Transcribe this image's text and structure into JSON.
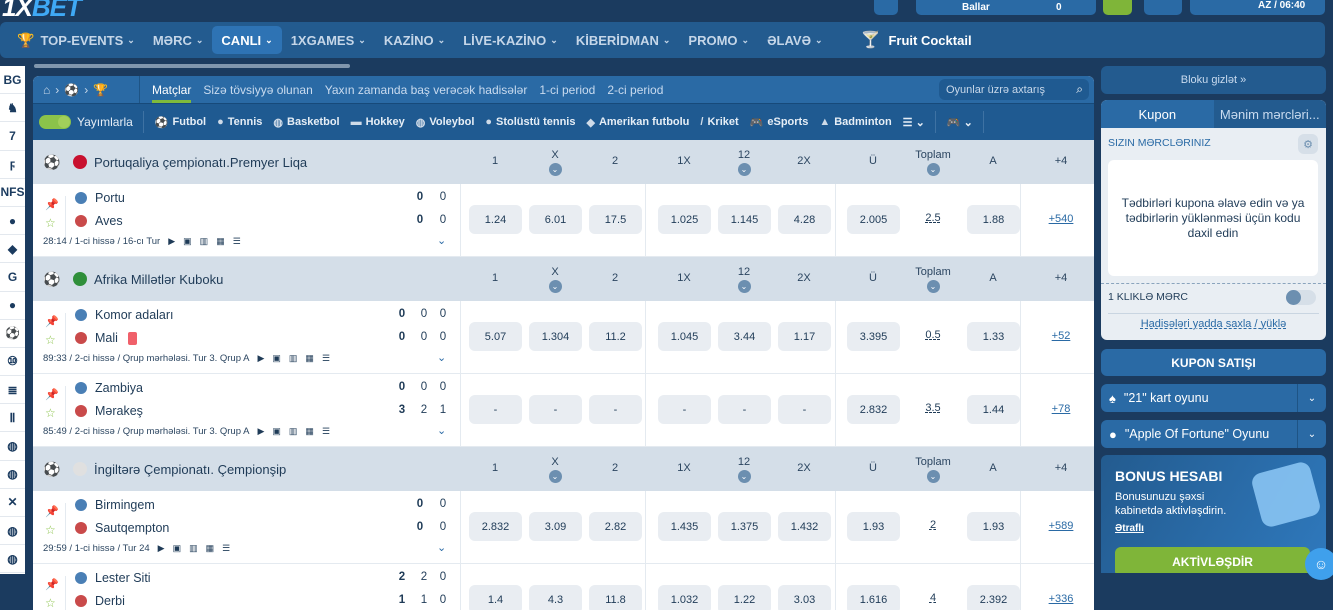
{
  "header": {
    "logo": "1XBET",
    "balance_label": "Ballar",
    "balance_value": "0",
    "lang_time": "AZ / 06:40"
  },
  "nav": [
    {
      "label": "TOP-EVENTS",
      "icon": "trophy-icon"
    },
    {
      "label": "MƏRC"
    },
    {
      "label": "CANLI",
      "active": true
    },
    {
      "label": "1XGAMES"
    },
    {
      "label": "KAZİNO"
    },
    {
      "label": "LİVE-KAZİNO"
    },
    {
      "label": "KİBERİDMAN"
    },
    {
      "label": "PROMO"
    },
    {
      "label": "ƏLAVƏ"
    }
  ],
  "nav_featured": {
    "label": "Fruit Cocktail",
    "icon": "cocktail-icon"
  },
  "left_strip": [
    "BG",
    "♞",
    "7",
    "ϝ",
    "NFS",
    "●",
    "◆",
    "G",
    "●",
    "⚽",
    "⑩",
    "≣",
    "Ⅱ",
    "◍",
    "◍",
    "✕",
    "◍",
    "◍"
  ],
  "crumb_tabs": [
    {
      "label": "Matçlar",
      "active": true
    },
    {
      "label": "Sizə tövsiyyə olunan"
    },
    {
      "label": "Yaxın zamanda baş verəcək hadisələr"
    },
    {
      "label": "1-ci period"
    },
    {
      "label": "2-ci period"
    }
  ],
  "search": {
    "placeholder": "Oyunlar üzrə axtarış"
  },
  "streams_label": "Yayımlarla",
  "sports": [
    {
      "label": "Futbol",
      "icon": "⚽"
    },
    {
      "label": "Tennis",
      "icon": "●"
    },
    {
      "label": "Basketbol",
      "icon": "◍"
    },
    {
      "label": "Hokkey",
      "icon": "▬"
    },
    {
      "label": "Voleybol",
      "icon": "◍"
    },
    {
      "label": "Stolüstü tennis",
      "icon": "●"
    },
    {
      "label": "Amerikan futbolu",
      "icon": "◆"
    },
    {
      "label": "Kriket",
      "icon": "/"
    },
    {
      "label": "eSports",
      "icon": "🎮"
    },
    {
      "label": "Badminton",
      "icon": "▲"
    }
  ],
  "columns": [
    {
      "label": "1"
    },
    {
      "label": "X",
      "dropdown": true
    },
    {
      "label": "2"
    },
    {
      "label": "1X"
    },
    {
      "label": "12",
      "dropdown": true
    },
    {
      "label": "2X"
    },
    {
      "label": "Ü"
    },
    {
      "label": "Toplam",
      "dropdown": true
    },
    {
      "label": "A"
    },
    {
      "label": "+4"
    }
  ],
  "leagues": [
    {
      "name": "Portuqaliya çempionatı.Premyer Liqa",
      "flag": "#c8102e",
      "matches": [
        {
          "teams": [
            "Portu",
            "Aves"
          ],
          "scores": [
            [
              "0",
              "0"
            ],
            [
              "0",
              "0"
            ]
          ],
          "info": "28:14 / 1-ci hissə / 16-cı Tur",
          "odds": [
            "1.24",
            "6.01",
            "17.5",
            "1.025",
            "1.145",
            "4.28",
            "2.005",
            "2.5",
            "1.88",
            "+540"
          ]
        }
      ]
    },
    {
      "name": "Afrika Millətlər Kuboku",
      "flag": "#2f8f3a",
      "matches": [
        {
          "teams": [
            "Komor adaları",
            "Mali"
          ],
          "red_card": 1,
          "scores": [
            [
              "0",
              "0",
              "0"
            ],
            [
              "0",
              "0",
              "0"
            ]
          ],
          "info": "89:33 / 2-ci hissə / Qrup mərhələsi. Tur 3. Qrup A",
          "odds": [
            "5.07",
            "1.304",
            "11.2",
            "1.045",
            "3.44",
            "1.17",
            "3.395",
            "0.5",
            "1.33",
            "+52"
          ]
        },
        {
          "teams": [
            "Zambiya",
            "Mərakeş"
          ],
          "scores": [
            [
              "0",
              "0",
              "0"
            ],
            [
              "3",
              "2",
              "1"
            ]
          ],
          "info": "85:49 / 2-ci hissə / Qrup mərhələsi. Tur 3. Qrup A",
          "odds": [
            "-",
            "-",
            "-",
            "-",
            "-",
            "-",
            "2.832",
            "3.5",
            "1.44",
            "+78"
          ]
        }
      ]
    },
    {
      "name": "İngiltərə Çempionatı. Çempionşip",
      "flag": "#e0e0e0",
      "matches": [
        {
          "teams": [
            "Birmingem",
            "Sautqempton"
          ],
          "scores": [
            [
              "0",
              "0"
            ],
            [
              "0",
              "0"
            ]
          ],
          "info": "29:59 / 1-ci hissə / Tur 24",
          "odds": [
            "2.832",
            "3.09",
            "2.82",
            "1.435",
            "1.375",
            "1.432",
            "1.93",
            "2",
            "1.93",
            "+589"
          ]
        },
        {
          "teams": [
            "Lester Siti",
            "Derbi"
          ],
          "scores": [
            [
              "2",
              "2",
              "0"
            ],
            [
              "1",
              "1",
              "0"
            ]
          ],
          "info": "",
          "odds": [
            "1.4",
            "4.3",
            "11.8",
            "1.032",
            "1.22",
            "3.03",
            "1.616",
            "4",
            "2.392",
            "+336"
          ]
        }
      ]
    }
  ],
  "right": {
    "hide_label": "Bloku gizlət »",
    "tabs": [
      "Kupon",
      "Mənim mərcləri..."
    ],
    "your_bets": "SIZIN MƏRCLƏRINIZ",
    "empty_text": "Tədbirləri kupona əlavə edin və ya tədbirlərin yüklənməsi üçün kodu daxil edin",
    "one_click": "1 KLIKLƏ MƏRC",
    "save_load": "Hadisələri yadda saxla / yüklə",
    "sale": "KUPON SATIŞI",
    "games": [
      "\"21\" kart oyunu",
      "\"Apple Of Fortune\" Oyunu"
    ],
    "bonus_title": "BONUS HESABI",
    "bonus_text": "Bonusunuzu şəxsi kabinetdə aktivləşdirin.",
    "bonus_link": "Ətraflı",
    "bonus_button": "AKTİVLƏŞDİR"
  },
  "colors": {
    "navy": "#1b3b5f",
    "blue": "#2a6aa5",
    "green": "#7fb539",
    "league_bg": "#d4dee8"
  }
}
